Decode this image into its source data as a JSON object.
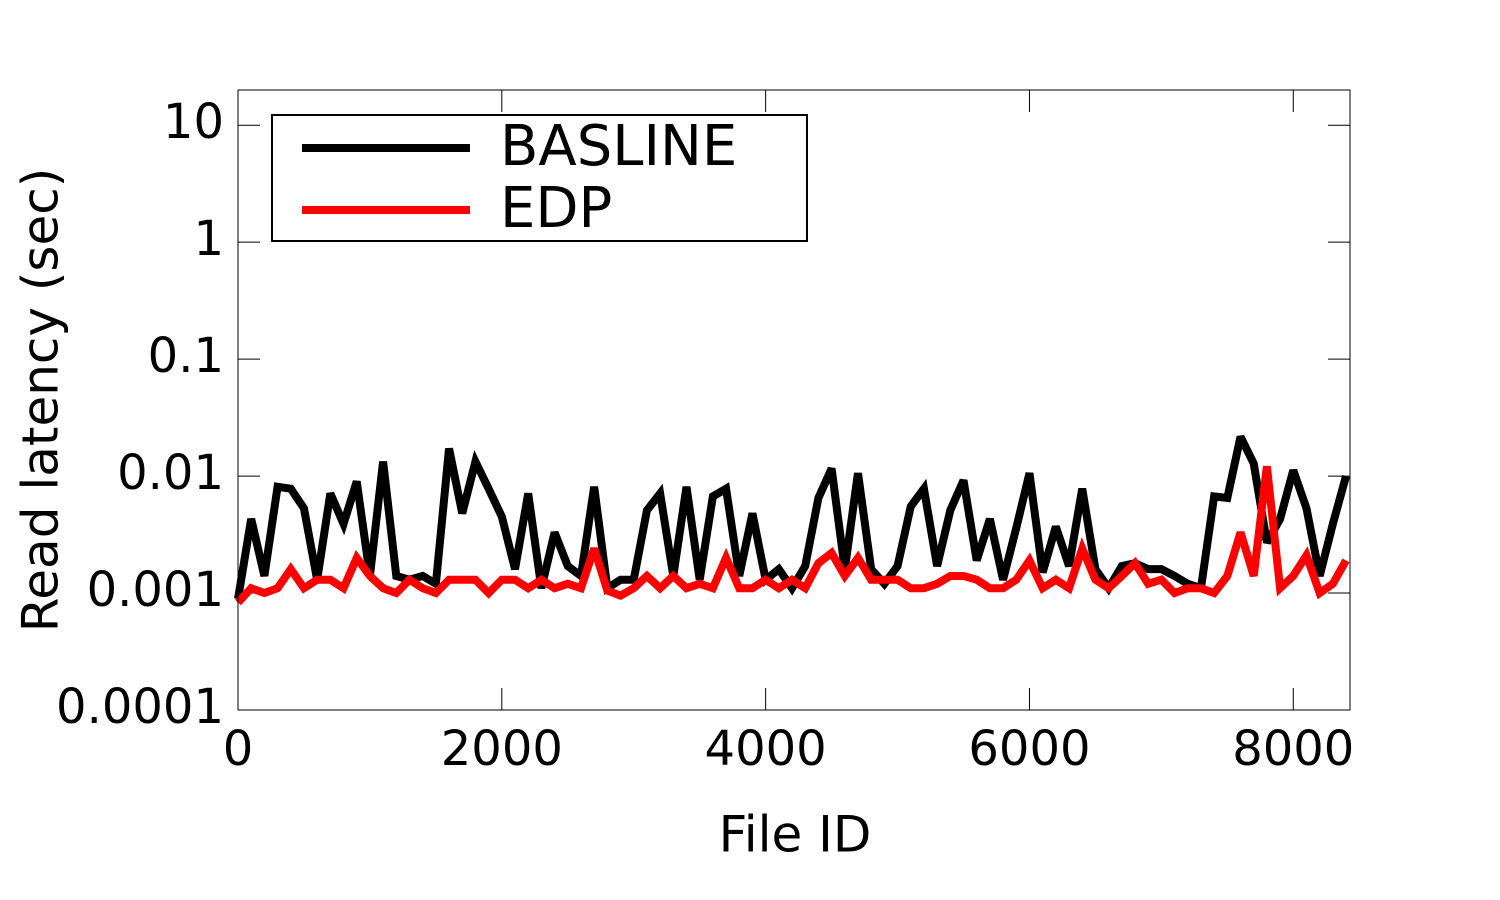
{
  "chart_data": {
    "type": "line",
    "xlabel": "File ID",
    "ylabel": "Read latency (sec)",
    "x": [
      0,
      100,
      200,
      300,
      400,
      500,
      600,
      700,
      800,
      900,
      1000,
      1100,
      1200,
      1300,
      1400,
      1500,
      1600,
      1700,
      1800,
      1900,
      2000,
      2100,
      2200,
      2300,
      2400,
      2500,
      2600,
      2700,
      2800,
      2900,
      3000,
      3100,
      3200,
      3300,
      3400,
      3500,
      3600,
      3700,
      3800,
      3900,
      4000,
      4100,
      4200,
      4300,
      4400,
      4500,
      4600,
      4700,
      4800,
      4900,
      5000,
      5100,
      5200,
      5300,
      5400,
      5500,
      5600,
      5700,
      5800,
      5900,
      6000,
      6100,
      6200,
      6300,
      6400,
      6500,
      6600,
      6700,
      6800,
      6900,
      7000,
      7100,
      7200,
      7300,
      7400,
      7500,
      7600,
      7700,
      7800,
      7900,
      8000,
      8100,
      8200,
      8300,
      8400
    ],
    "series": [
      {
        "name": "BASLINE",
        "color": "#000000",
        "values": [
          0.00089,
          0.0043,
          0.0014,
          0.0081,
          0.0078,
          0.0053,
          0.0013,
          0.0071,
          0.0039,
          0.009,
          0.0014,
          0.0133,
          0.0014,
          0.0013,
          0.0014,
          0.0012,
          0.0172,
          0.0048,
          0.0133,
          0.0078,
          0.0045,
          0.0016,
          0.0071,
          0.0011,
          0.0033,
          0.0017,
          0.0014,
          0.0081,
          0.0011,
          0.0013,
          0.0013,
          0.0051,
          0.0071,
          0.0014,
          0.0081,
          0.0013,
          0.0067,
          0.0078,
          0.0014,
          0.0048,
          0.0013,
          0.0016,
          0.0011,
          0.0017,
          0.0065,
          0.0116,
          0.0016,
          0.0106,
          0.0016,
          0.0012,
          0.0017,
          0.0055,
          0.0078,
          0.0017,
          0.0051,
          0.0092,
          0.0019,
          0.0043,
          0.0013,
          0.0036,
          0.0106,
          0.0015,
          0.0037,
          0.0017,
          0.0078,
          0.0016,
          0.0011,
          0.0017,
          0.0018,
          0.0016,
          0.0016,
          0.0014,
          0.0012,
          0.0011,
          0.0067,
          0.0065,
          0.0217,
          0.0128,
          0.0027,
          0.0043,
          0.0112,
          0.0053,
          0.0014,
          0.0039,
          0.01
        ]
      },
      {
        "name": "EDP",
        "color": "#ff0000",
        "values": [
          0.00083,
          0.0011,
          0.001,
          0.0011,
          0.0016,
          0.0011,
          0.0013,
          0.0013,
          0.0011,
          0.002,
          0.0014,
          0.0011,
          0.001,
          0.0013,
          0.0011,
          0.001,
          0.0013,
          0.0013,
          0.0013,
          0.001,
          0.0013,
          0.0013,
          0.0011,
          0.0013,
          0.0011,
          0.0012,
          0.0011,
          0.0024,
          0.00105,
          0.00095,
          0.0011,
          0.0014,
          0.0011,
          0.0014,
          0.0011,
          0.0012,
          0.0011,
          0.002,
          0.0011,
          0.0011,
          0.0013,
          0.0011,
          0.0013,
          0.0011,
          0.0018,
          0.0022,
          0.0014,
          0.002,
          0.0013,
          0.0013,
          0.0013,
          0.0011,
          0.0011,
          0.0012,
          0.0014,
          0.0014,
          0.0013,
          0.0011,
          0.0011,
          0.0013,
          0.0019,
          0.0011,
          0.0013,
          0.0011,
          0.0024,
          0.0013,
          0.0011,
          0.0014,
          0.0018,
          0.0012,
          0.0013,
          0.001,
          0.0011,
          0.0011,
          0.001,
          0.0014,
          0.0033,
          0.0014,
          0.0121,
          0.0011,
          0.0014,
          0.0021,
          0.001,
          0.0012,
          0.0019
        ]
      }
    ],
    "xlim": [
      0,
      8430
    ],
    "xticks": [
      0,
      2000,
      4000,
      6000,
      8000
    ],
    "ylim": [
      0.0001,
      20
    ],
    "yticks": [
      0.0001,
      0.001,
      0.01,
      0.1,
      1,
      10
    ],
    "ylog": true,
    "legend": "upper left"
  }
}
